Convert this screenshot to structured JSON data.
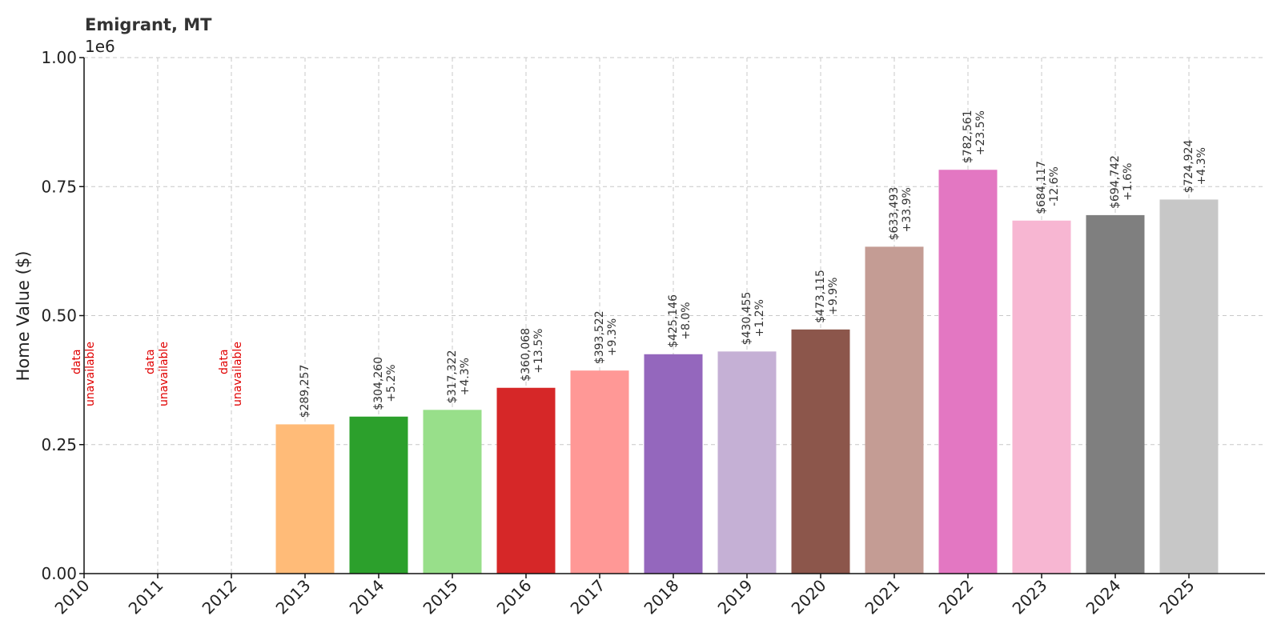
{
  "chart_data": {
    "type": "bar",
    "title": "Emigrant, MT",
    "ylabel": "Home Value ($)",
    "xlabel": "",
    "y_offset_text": "1e6",
    "ylim": [
      0,
      1000000
    ],
    "yticks": [
      0,
      250000,
      500000,
      750000,
      1000000
    ],
    "ytick_labels": [
      "0.00",
      "0.25",
      "0.50",
      "0.75",
      "1.00"
    ],
    "grid": true,
    "unavailable_label": [
      "data",
      "unavailable"
    ],
    "categories": [
      "2010",
      "2011",
      "2012",
      "2013",
      "2014",
      "2015",
      "2016",
      "2017",
      "2018",
      "2019",
      "2020",
      "2021",
      "2022",
      "2023",
      "2024",
      "2025"
    ],
    "values": [
      null,
      null,
      null,
      289257,
      304260,
      317322,
      360068,
      393522,
      425146,
      430455,
      473115,
      633493,
      782561,
      684117,
      694742,
      724924
    ],
    "value_labels": [
      "",
      "",
      "",
      "$289,257",
      "$304,260",
      "$317,322",
      "$360,068",
      "$393,522",
      "$425,146",
      "$430,455",
      "$473,115",
      "$633,493",
      "$782,561",
      "$684,117",
      "$694,742",
      "$724,924"
    ],
    "change_labels": [
      "",
      "",
      "",
      "",
      "+5.2%",
      "+4.3%",
      "+13.5%",
      "+9.3%",
      "+8.0%",
      "+1.2%",
      "+9.9%",
      "+33.9%",
      "+23.5%",
      "-12.6%",
      "+1.6%",
      "+4.3%"
    ],
    "colors": [
      "#1f77b4",
      "#aec7e8",
      "#ff7f0e",
      "#ffbb78",
      "#2ca02c",
      "#98df8a",
      "#d62728",
      "#ff9896",
      "#9467bd",
      "#c5b0d5",
      "#8c564b",
      "#c49c94",
      "#e377c2",
      "#f7b6d2",
      "#7f7f7f",
      "#c7c7c7"
    ]
  }
}
